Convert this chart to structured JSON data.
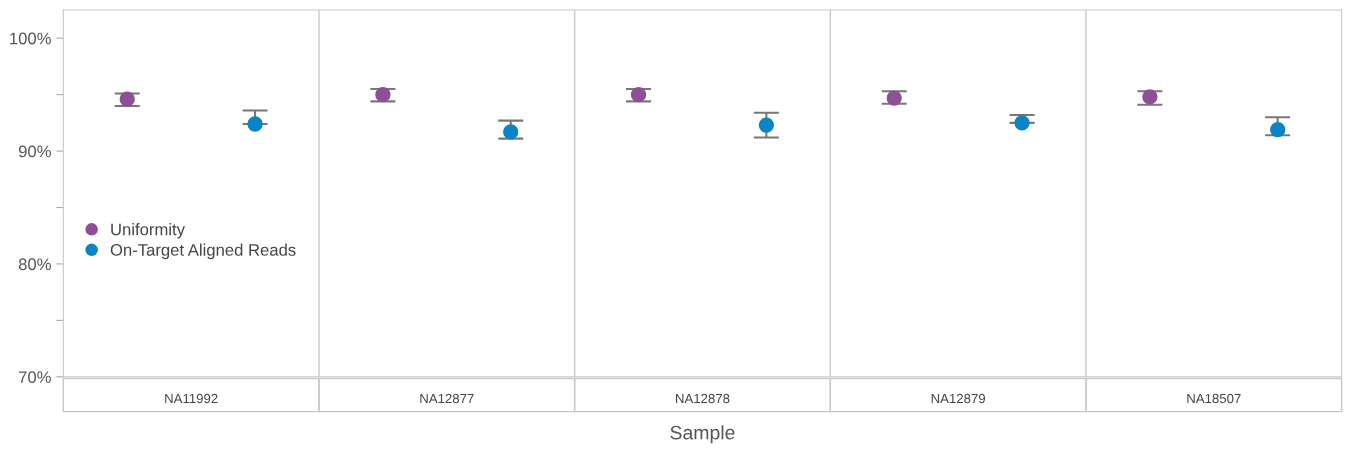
{
  "chart_data": {
    "type": "scatter",
    "xlabel": "Sample",
    "categories": [
      "NA11992",
      "NA12877",
      "NA12878",
      "NA12879",
      "NA18507"
    ],
    "series": [
      {
        "name": "Uniformity",
        "color": "#8e4f97",
        "values": [
          94.6,
          95.0,
          95.0,
          94.7,
          94.8
        ],
        "errors": [
          [
            94.0,
            95.1
          ],
          [
            94.4,
            95.5
          ],
          [
            94.4,
            95.5
          ],
          [
            94.2,
            95.3
          ],
          [
            94.1,
            95.3
          ]
        ]
      },
      {
        "name": "On-Target Aligned Reads",
        "color": "#0a84c4",
        "values": [
          92.4,
          91.7,
          92.3,
          92.5,
          91.9
        ],
        "errors": [
          [
            92.4,
            93.6
          ],
          [
            91.1,
            92.7
          ],
          [
            91.2,
            93.4
          ],
          [
            92.5,
            93.2
          ],
          [
            91.4,
            93.0
          ]
        ]
      }
    ],
    "ylim": [
      70,
      102.5
    ],
    "yticks": [
      {
        "value": 70,
        "label": "70%"
      },
      {
        "value": 75,
        "label": null
      },
      {
        "value": 80,
        "label": "80%"
      },
      {
        "value": 85,
        "label": null
      },
      {
        "value": 90,
        "label": "90%"
      },
      {
        "value": 95,
        "label": null
      },
      {
        "value": 100,
        "label": "100%"
      }
    ],
    "grid": false,
    "legend": "left",
    "marker": "circle"
  }
}
